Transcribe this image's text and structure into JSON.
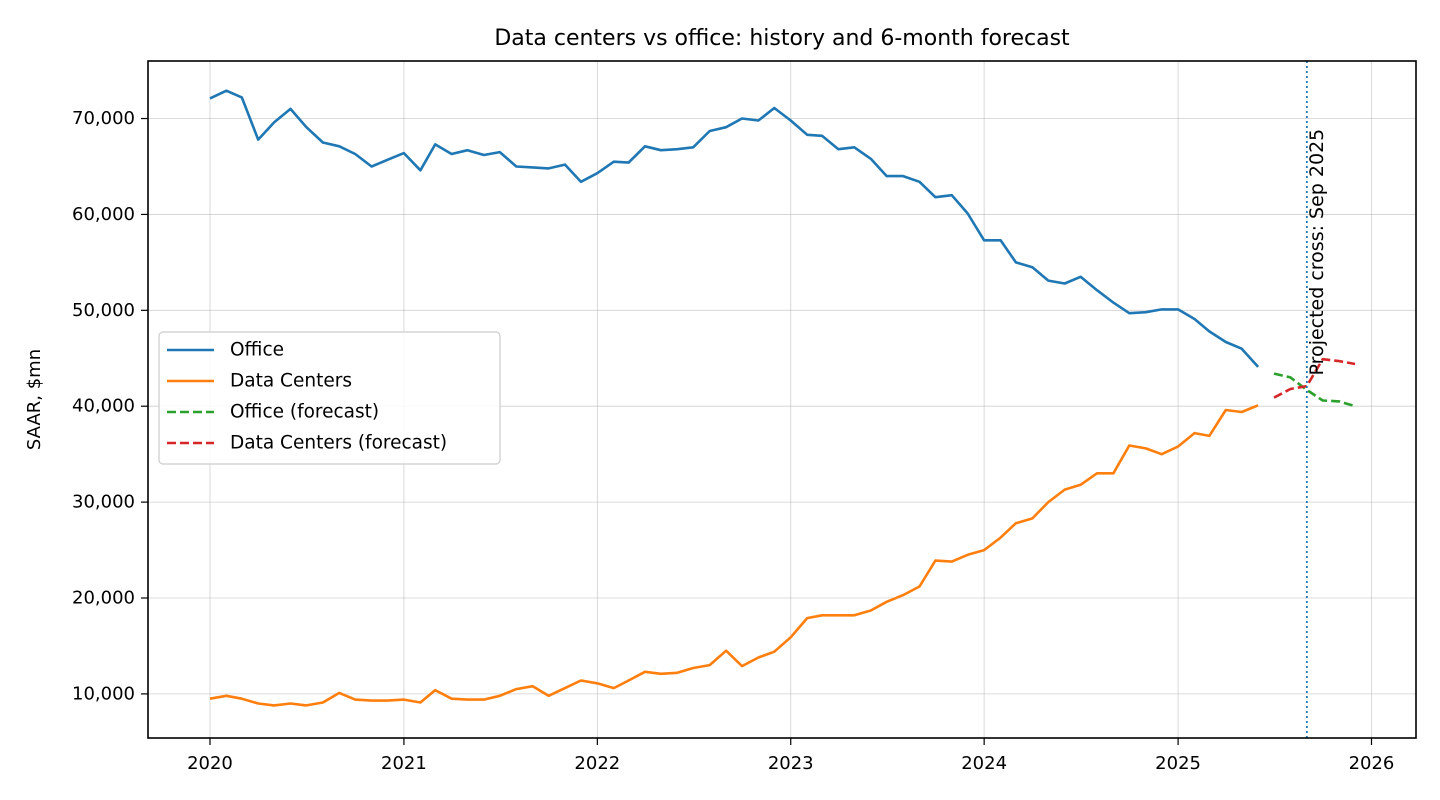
{
  "chart_data": {
    "type": "line",
    "title": "Data centers vs office: history and 6-month forecast",
    "xlabel": "",
    "ylabel": "SAAR, $mn",
    "xlim": [
      "2019-09-06",
      "2026-03-26"
    ],
    "ylim": [
      5400,
      76000
    ],
    "x_ticks": [
      "2020-01-01",
      "2021-01-01",
      "2022-01-01",
      "2023-01-01",
      "2024-01-01",
      "2025-01-01",
      "2026-01-01"
    ],
    "x_tick_labels": [
      "2020",
      "2021",
      "2022",
      "2023",
      "2024",
      "2025",
      "2026"
    ],
    "y_ticks": [
      10000,
      20000,
      30000,
      40000,
      50000,
      60000,
      70000
    ],
    "y_tick_labels": [
      "10,000",
      "20,000",
      "30,000",
      "40,000",
      "50,000",
      "60,000",
      "70,000"
    ],
    "grid": true,
    "legend_position": "center-left",
    "series": [
      {
        "name": "Office",
        "color": "#1f77b4",
        "style": "solid",
        "x": [
          "2020-01",
          "2020-02",
          "2020-03",
          "2020-04",
          "2020-05",
          "2020-06",
          "2020-07",
          "2020-08",
          "2020-09",
          "2020-10",
          "2020-11",
          "2020-12",
          "2021-01",
          "2021-02",
          "2021-03",
          "2021-04",
          "2021-05",
          "2021-06",
          "2021-07",
          "2021-08",
          "2021-09",
          "2021-10",
          "2021-11",
          "2021-12",
          "2022-01",
          "2022-02",
          "2022-03",
          "2022-04",
          "2022-05",
          "2022-06",
          "2022-07",
          "2022-08",
          "2022-09",
          "2022-10",
          "2022-11",
          "2022-12",
          "2023-01",
          "2023-02",
          "2023-03",
          "2023-04",
          "2023-05",
          "2023-06",
          "2023-07",
          "2023-08",
          "2023-09",
          "2023-10",
          "2023-11",
          "2023-12",
          "2024-01",
          "2024-02",
          "2024-03",
          "2024-04",
          "2024-05",
          "2024-06",
          "2024-07",
          "2024-08",
          "2024-09",
          "2024-10",
          "2024-11",
          "2024-12",
          "2025-01",
          "2025-02",
          "2025-03",
          "2025-04",
          "2025-05",
          "2025-06"
        ],
        "values": [
          72100,
          72900,
          72200,
          67800,
          69600,
          71000,
          69100,
          67500,
          67100,
          66300,
          65000,
          65700,
          66400,
          64600,
          67300,
          66300,
          66700,
          66200,
          66500,
          65000,
          64900,
          64800,
          65200,
          63400,
          64300,
          65500,
          65400,
          67100,
          66700,
          66800,
          67000,
          68700,
          69100,
          70000,
          69800,
          71100,
          69800,
          68300,
          68200,
          66800,
          67000,
          65800,
          64000,
          64000,
          63400,
          61800,
          62000,
          60100,
          57300,
          57300,
          55000,
          54500,
          53100,
          52800,
          53500,
          52100,
          50800,
          49700,
          49800,
          50100,
          50100,
          49100,
          47800,
          46700,
          46000,
          44100
        ]
      },
      {
        "name": "Data Centers",
        "color": "#ff7f0e",
        "style": "solid",
        "x": [
          "2020-01",
          "2020-02",
          "2020-03",
          "2020-04",
          "2020-05",
          "2020-06",
          "2020-07",
          "2020-08",
          "2020-09",
          "2020-10",
          "2020-11",
          "2020-12",
          "2021-01",
          "2021-02",
          "2021-03",
          "2021-04",
          "2021-05",
          "2021-06",
          "2021-07",
          "2021-08",
          "2021-09",
          "2021-10",
          "2021-11",
          "2021-12",
          "2022-01",
          "2022-02",
          "2022-03",
          "2022-04",
          "2022-05",
          "2022-06",
          "2022-07",
          "2022-08",
          "2022-09",
          "2022-10",
          "2022-11",
          "2022-12",
          "2023-01",
          "2023-02",
          "2023-03",
          "2023-04",
          "2023-05",
          "2023-06",
          "2023-07",
          "2023-08",
          "2023-09",
          "2023-10",
          "2023-11",
          "2023-12",
          "2024-01",
          "2024-02",
          "2024-03",
          "2024-04",
          "2024-05",
          "2024-06",
          "2024-07",
          "2024-08",
          "2024-09",
          "2024-10",
          "2024-11",
          "2024-12",
          "2025-01",
          "2025-02",
          "2025-03",
          "2025-04",
          "2025-05",
          "2025-06"
        ],
        "values": [
          9500,
          9800,
          9500,
          9000,
          8800,
          9000,
          8800,
          9100,
          10100,
          9400,
          9300,
          9300,
          9400,
          9100,
          10400,
          9500,
          9400,
          9400,
          9800,
          10500,
          10800,
          9800,
          10600,
          11400,
          11100,
          10600,
          11400,
          12300,
          12100,
          12200,
          12700,
          13000,
          14500,
          12900,
          13800,
          14400,
          15900,
          17900,
          18200,
          18200,
          18200,
          18700,
          19600,
          20300,
          21200,
          23900,
          23800,
          24500,
          25000,
          26300,
          27800,
          28300,
          30000,
          31300,
          31800,
          33000,
          33000,
          35900,
          35600,
          35000,
          35800,
          37200,
          36900,
          39600,
          39400,
          40100
        ]
      },
      {
        "name": "Office (forecast)",
        "color": "#2ca02c",
        "style": "dashed",
        "x": [
          "2025-07",
          "2025-08",
          "2025-09",
          "2025-10",
          "2025-11",
          "2025-12"
        ],
        "values": [
          43400,
          43000,
          41700,
          40600,
          40500,
          40000
        ]
      },
      {
        "name": "Data Centers (forecast)",
        "color": "#d62728",
        "style": "dashed",
        "x": [
          "2025-07",
          "2025-08",
          "2025-09",
          "2025-10",
          "2025-11",
          "2025-12"
        ],
        "values": [
          40900,
          41800,
          42100,
          44900,
          44700,
          44400
        ]
      }
    ],
    "vline": {
      "x": "2025-09-01",
      "color": "#1f77b4",
      "style": "dotted"
    },
    "annotation": {
      "text": "Projected cross: Sep 2025",
      "x": "2025-09-01",
      "y": 43000,
      "rotation": 90
    }
  }
}
